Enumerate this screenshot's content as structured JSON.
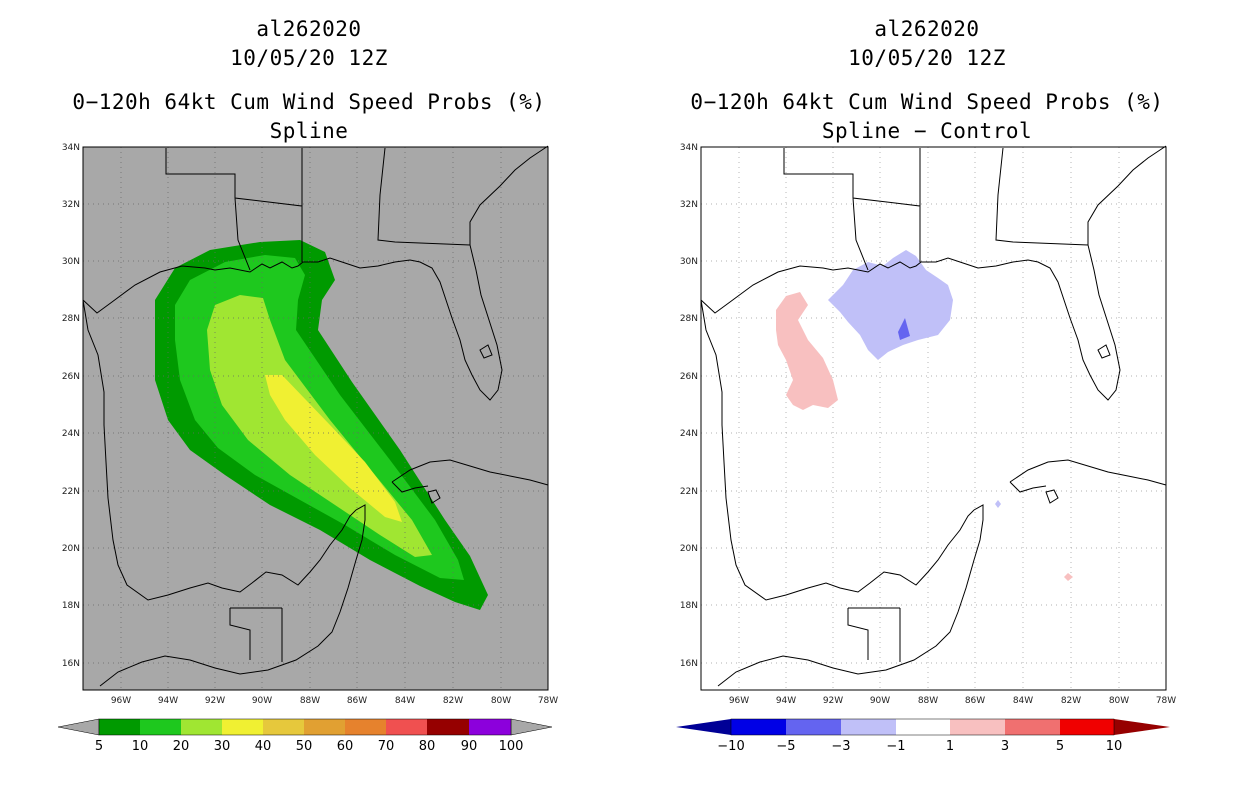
{
  "left": {
    "title_id": "al262020",
    "title_date": "10/05/20 12Z",
    "title_product": "0−120h 64kt Cum Wind Speed Probs (%)",
    "title_method": "Spline",
    "lat_labels": [
      "34N",
      "32N",
      "30N",
      "28N",
      "26N",
      "24N",
      "22N",
      "20N",
      "18N",
      "16N"
    ],
    "lon_labels": [
      "96W",
      "94W",
      "92W",
      "90W",
      "88W",
      "86W",
      "84W",
      "82W",
      "80W",
      "78W"
    ],
    "legend": {
      "colors": [
        "#009a00",
        "#1ec81e",
        "#a0e632",
        "#f0f032",
        "#e6c83c",
        "#e1a032",
        "#e6822d",
        "#f05050",
        "#960000",
        "#8c00dc"
      ],
      "labels": [
        "5",
        "10",
        "20",
        "30",
        "40",
        "50",
        "60",
        "70",
        "80",
        "90",
        "100"
      ],
      "end_color": "#a8a8a8"
    },
    "background_color": "#a8a8a8"
  },
  "right": {
    "title_id": "al262020",
    "title_date": "10/05/20 12Z",
    "title_product": "0−120h 64kt Cum Wind Speed Probs (%)",
    "title_method": "Spline − Control",
    "lat_labels": [
      "34N",
      "32N",
      "30N",
      "28N",
      "26N",
      "24N",
      "22N",
      "20N",
      "18N",
      "16N"
    ],
    "lon_labels": [
      "96W",
      "94W",
      "92W",
      "90W",
      "88W",
      "86W",
      "84W",
      "82W",
      "80W",
      "78W"
    ],
    "legend": {
      "colors": [
        "#0000e6",
        "#6464f0",
        "#c0c0f8",
        "#ffffff",
        "#f8c0c0",
        "#f07070",
        "#f00000"
      ],
      "labels": [
        "−10",
        "−5",
        "−3",
        "−1",
        "1",
        "3",
        "5",
        "10"
      ],
      "low_end_color": "#000096",
      "high_end_color": "#960000"
    },
    "background_color": "#ffffff"
  }
}
